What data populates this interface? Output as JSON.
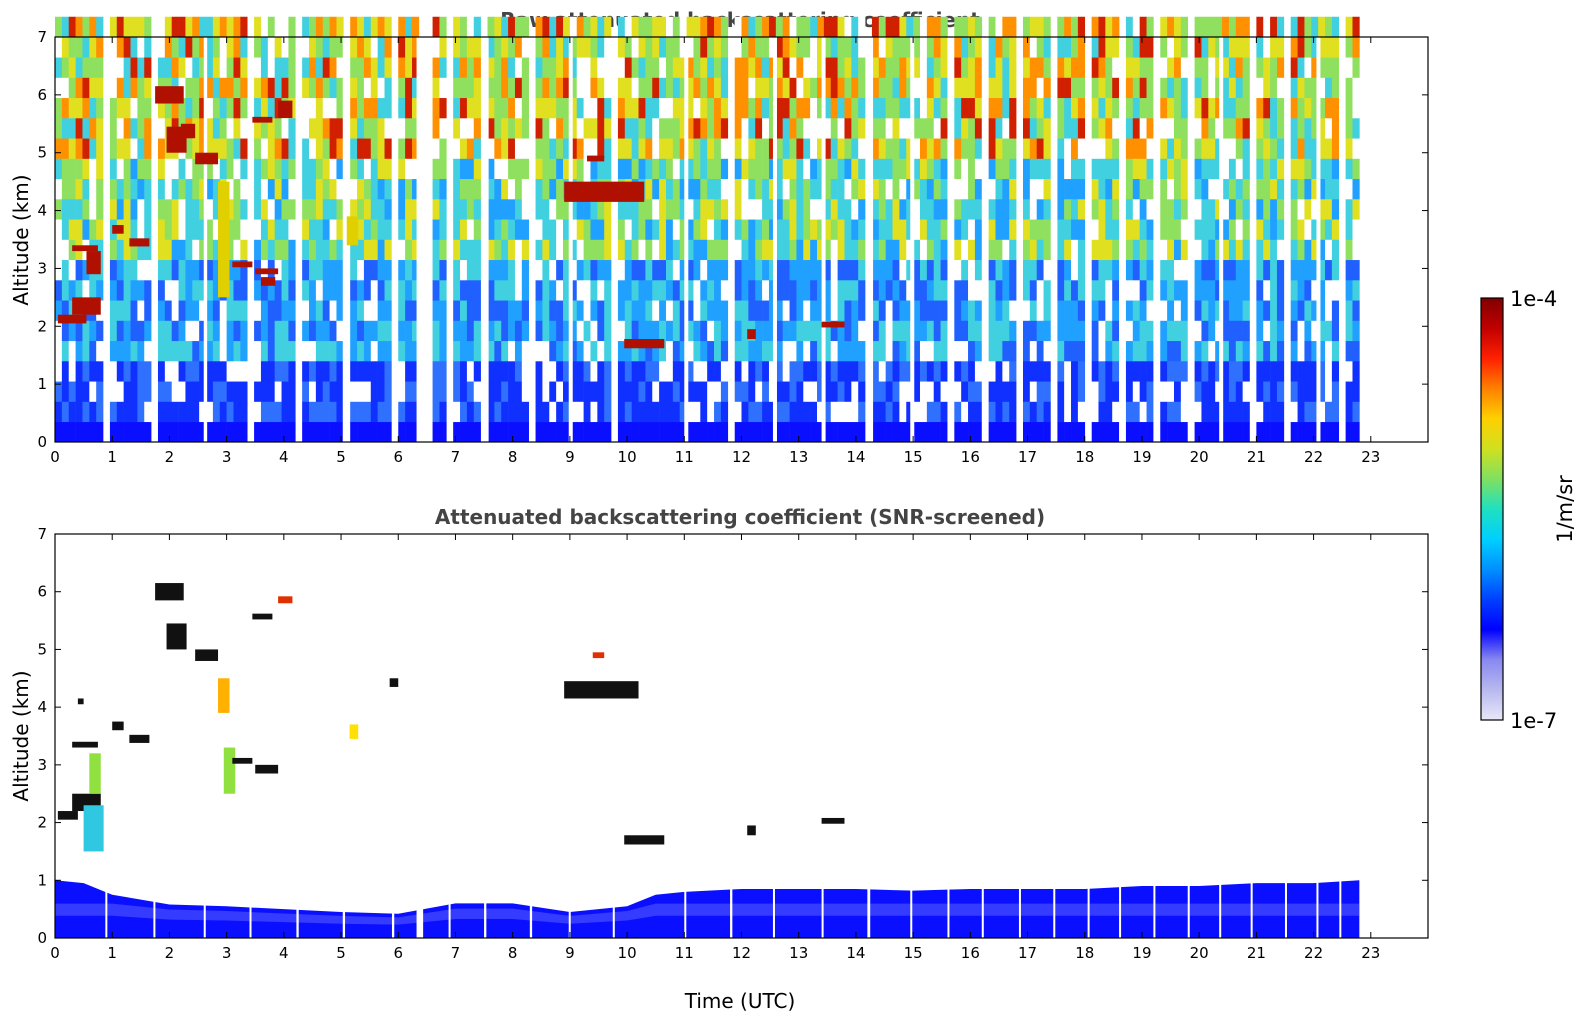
{
  "chart_data": [
    {
      "type": "heatmap",
      "title": "Raw attenuated backscattering coefficient",
      "xlabel": "",
      "ylabel": "Altitude (km)",
      "xlim": [
        0,
        24
      ],
      "ylim": [
        0,
        7
      ],
      "x_ticks": [
        "0",
        "1",
        "2",
        "3",
        "4",
        "5",
        "6",
        "7",
        "8",
        "9",
        "10",
        "11",
        "12",
        "13",
        "14",
        "15",
        "16",
        "17",
        "18",
        "19",
        "20",
        "21",
        "22",
        "23"
      ],
      "y_ticks": [
        "0",
        "1",
        "2",
        "3",
        "4",
        "5",
        "6",
        "7"
      ],
      "data_end_time": 22.8,
      "gaps": [
        [
          0.88,
          0.95
        ],
        [
          1.72,
          1.79
        ],
        [
          2.6,
          2.66
        ],
        [
          3.4,
          3.47
        ],
        [
          4.22,
          4.3
        ],
        [
          5.03,
          5.11
        ],
        [
          5.89,
          5.97
        ],
        [
          6.32,
          6.55
        ],
        [
          6.88,
          6.95
        ],
        [
          7.5,
          7.58
        ],
        [
          8.3,
          8.38
        ],
        [
          8.98,
          9.05
        ],
        [
          9.75,
          9.82
        ],
        [
          11.0,
          11.07
        ],
        [
          11.8,
          11.88
        ],
        [
          12.55,
          12.62
        ],
        [
          13.4,
          13.47
        ],
        [
          14.2,
          14.3
        ],
        [
          14.95,
          15.02
        ],
        [
          15.6,
          15.66
        ],
        [
          16.2,
          16.27
        ],
        [
          16.85,
          16.92
        ],
        [
          17.45,
          17.52
        ],
        [
          18.05,
          18.12
        ],
        [
          18.6,
          18.67
        ],
        [
          19.2,
          19.27
        ],
        [
          19.8,
          19.87
        ],
        [
          20.35,
          20.42
        ],
        [
          20.9,
          20.97
        ],
        [
          21.5,
          21.57
        ],
        [
          22.05,
          22.12
        ],
        [
          22.45,
          22.52
        ]
      ],
      "features": [
        {
          "t_start": 0.05,
          "t_end": 0.55,
          "alt_start": 2.05,
          "alt_end": 2.2,
          "level": "high"
        },
        {
          "t_start": 0.3,
          "t_end": 0.8,
          "alt_start": 2.2,
          "alt_end": 2.5,
          "level": "high"
        },
        {
          "t_start": 0.3,
          "t_end": 0.75,
          "alt_start": 3.3,
          "alt_end": 3.4,
          "level": "high"
        },
        {
          "t_start": 0.55,
          "t_end": 0.8,
          "alt_start": 2.9,
          "alt_end": 3.3,
          "level": "high"
        },
        {
          "t_start": 1.0,
          "t_end": 1.2,
          "alt_start": 3.6,
          "alt_end": 3.75,
          "level": "high"
        },
        {
          "t_start": 1.3,
          "t_end": 1.65,
          "alt_start": 3.38,
          "alt_end": 3.52,
          "level": "high"
        },
        {
          "t_start": 1.75,
          "t_end": 2.25,
          "alt_start": 5.85,
          "alt_end": 6.15,
          "level": "high"
        },
        {
          "t_start": 1.95,
          "t_end": 2.3,
          "alt_start": 5.0,
          "alt_end": 5.45,
          "level": "high"
        },
        {
          "t_start": 2.45,
          "t_end": 2.85,
          "alt_start": 4.8,
          "alt_end": 5.0,
          "level": "high"
        },
        {
          "t_start": 2.2,
          "t_end": 2.45,
          "alt_start": 5.25,
          "alt_end": 5.5,
          "level": "high"
        },
        {
          "t_start": 3.1,
          "t_end": 3.45,
          "alt_start": 3.02,
          "alt_end": 3.12,
          "level": "high"
        },
        {
          "t_start": 3.5,
          "t_end": 3.9,
          "alt_start": 2.9,
          "alt_end": 3.0,
          "level": "high"
        },
        {
          "t_start": 3.6,
          "t_end": 3.85,
          "alt_start": 2.7,
          "alt_end": 2.85,
          "level": "high"
        },
        {
          "t_start": 3.45,
          "t_end": 3.8,
          "alt_start": 5.52,
          "alt_end": 5.62,
          "level": "high"
        },
        {
          "t_start": 3.9,
          "t_end": 4.15,
          "alt_start": 5.6,
          "alt_end": 5.9,
          "level": "high"
        },
        {
          "t_start": 8.9,
          "t_end": 10.3,
          "alt_start": 4.15,
          "alt_end": 4.5,
          "level": "high"
        },
        {
          "t_start": 9.3,
          "t_end": 9.6,
          "alt_start": 4.85,
          "alt_end": 4.95,
          "level": "high"
        },
        {
          "t_start": 9.95,
          "t_end": 10.65,
          "alt_start": 1.62,
          "alt_end": 1.78,
          "level": "high"
        },
        {
          "t_start": 12.1,
          "t_end": 12.25,
          "alt_start": 1.78,
          "alt_end": 1.95,
          "level": "high"
        },
        {
          "t_start": 13.4,
          "t_end": 13.8,
          "alt_start": 1.98,
          "alt_end": 2.08,
          "level": "high"
        },
        {
          "t_start": 2.85,
          "t_end": 3.05,
          "alt_start": 2.5,
          "alt_end": 4.5,
          "level": "mid"
        },
        {
          "t_start": 5.1,
          "t_end": 5.3,
          "alt_start": 3.4,
          "alt_end": 3.9,
          "level": "mid"
        }
      ]
    },
    {
      "type": "heatmap",
      "title": "Attenuated backscattering coefficient (SNR-screened)",
      "xlabel": "Time (UTC)",
      "ylabel": "Altitude (km)",
      "xlim": [
        0,
        24
      ],
      "ylim": [
        0,
        7
      ],
      "x_ticks": [
        "0",
        "1",
        "2",
        "3",
        "4",
        "5",
        "6",
        "7",
        "8",
        "9",
        "10",
        "11",
        "12",
        "13",
        "14",
        "15",
        "16",
        "17",
        "18",
        "19",
        "20",
        "21",
        "22",
        "23"
      ],
      "y_ticks": [
        "0",
        "1",
        "2",
        "3",
        "4",
        "5",
        "6",
        "7"
      ],
      "data_end_time": 22.8,
      "boundary_layer_top": [
        [
          0,
          1.0
        ],
        [
          0.5,
          0.95
        ],
        [
          1,
          0.75
        ],
        [
          2,
          0.58
        ],
        [
          3,
          0.55
        ],
        [
          4,
          0.5
        ],
        [
          5,
          0.45
        ],
        [
          6,
          0.42
        ],
        [
          7,
          0.6
        ],
        [
          8,
          0.6
        ],
        [
          9,
          0.45
        ],
        [
          10,
          0.55
        ],
        [
          10.5,
          0.75
        ],
        [
          11,
          0.8
        ],
        [
          12,
          0.85
        ],
        [
          13,
          0.85
        ],
        [
          14,
          0.85
        ],
        [
          15,
          0.82
        ],
        [
          16,
          0.85
        ],
        [
          17,
          0.85
        ],
        [
          18,
          0.85
        ],
        [
          19,
          0.9
        ],
        [
          20,
          0.9
        ],
        [
          21,
          0.95
        ],
        [
          22,
          0.95
        ],
        [
          22.8,
          1.0
        ]
      ],
      "features": [
        {
          "t_start": 0.05,
          "t_end": 0.4,
          "alt_start": 2.05,
          "alt_end": 2.2,
          "level": "black"
        },
        {
          "t_start": 0.3,
          "t_end": 0.8,
          "alt_start": 2.2,
          "alt_end": 2.5,
          "level": "black"
        },
        {
          "t_start": 0.3,
          "t_end": 0.75,
          "alt_start": 3.3,
          "alt_end": 3.4,
          "level": "black"
        },
        {
          "t_start": 0.4,
          "t_end": 0.5,
          "alt_start": 4.05,
          "alt_end": 4.15,
          "level": "black"
        },
        {
          "t_start": 0.5,
          "t_end": 0.85,
          "alt_start": 1.5,
          "alt_end": 2.3,
          "level": "cyan"
        },
        {
          "t_start": 0.6,
          "t_end": 0.8,
          "alt_start": 2.5,
          "alt_end": 3.2,
          "level": "green"
        },
        {
          "t_start": 1.0,
          "t_end": 1.2,
          "alt_start": 3.6,
          "alt_end": 3.75,
          "level": "black"
        },
        {
          "t_start": 1.3,
          "t_end": 1.65,
          "alt_start": 3.38,
          "alt_end": 3.52,
          "level": "black"
        },
        {
          "t_start": 1.75,
          "t_end": 2.25,
          "alt_start": 5.85,
          "alt_end": 6.15,
          "level": "black"
        },
        {
          "t_start": 1.95,
          "t_end": 2.3,
          "alt_start": 5.0,
          "alt_end": 5.45,
          "level": "black"
        },
        {
          "t_start": 2.45,
          "t_end": 2.85,
          "alt_start": 4.8,
          "alt_end": 5.0,
          "level": "black"
        },
        {
          "t_start": 2.85,
          "t_end": 3.05,
          "alt_start": 3.9,
          "alt_end": 4.5,
          "level": "orange"
        },
        {
          "t_start": 2.95,
          "t_end": 3.15,
          "alt_start": 2.5,
          "alt_end": 3.3,
          "level": "green"
        },
        {
          "t_start": 3.1,
          "t_end": 3.45,
          "alt_start": 3.02,
          "alt_end": 3.12,
          "level": "black"
        },
        {
          "t_start": 3.5,
          "t_end": 3.9,
          "alt_start": 2.85,
          "alt_end": 3.0,
          "level": "black"
        },
        {
          "t_start": 3.45,
          "t_end": 3.8,
          "alt_start": 5.52,
          "alt_end": 5.62,
          "level": "black"
        },
        {
          "t_start": 3.9,
          "t_end": 4.15,
          "alt_start": 5.8,
          "alt_end": 5.92,
          "level": "red"
        },
        {
          "t_start": 5.15,
          "t_end": 5.3,
          "alt_start": 3.45,
          "alt_end": 3.7,
          "level": "yellow"
        },
        {
          "t_start": 5.85,
          "t_end": 6.0,
          "alt_start": 4.35,
          "alt_end": 4.5,
          "level": "black"
        },
        {
          "t_start": 8.9,
          "t_end": 10.2,
          "alt_start": 4.15,
          "alt_end": 4.45,
          "level": "black"
        },
        {
          "t_start": 9.4,
          "t_end": 9.6,
          "alt_start": 4.85,
          "alt_end": 4.95,
          "level": "red"
        },
        {
          "t_start": 9.95,
          "t_end": 10.65,
          "alt_start": 1.62,
          "alt_end": 1.78,
          "level": "black"
        },
        {
          "t_start": 12.1,
          "t_end": 12.25,
          "alt_start": 1.78,
          "alt_end": 1.95,
          "level": "black"
        },
        {
          "t_start": 13.4,
          "t_end": 13.8,
          "alt_start": 1.98,
          "alt_end": 2.08,
          "level": "black"
        }
      ]
    }
  ],
  "colorbar": {
    "label": "1/m/sr",
    "max_label": "1e-4",
    "min_label": "1e-7",
    "colors": [
      "#e8e8f8",
      "#b8b8f0",
      "#8888f0",
      "#0000ff",
      "#0040ff",
      "#0090ff",
      "#00d0ff",
      "#20e0c0",
      "#80e060",
      "#d0e020",
      "#ffd000",
      "#ff8000",
      "#ff2000",
      "#c00000",
      "#800000"
    ]
  }
}
